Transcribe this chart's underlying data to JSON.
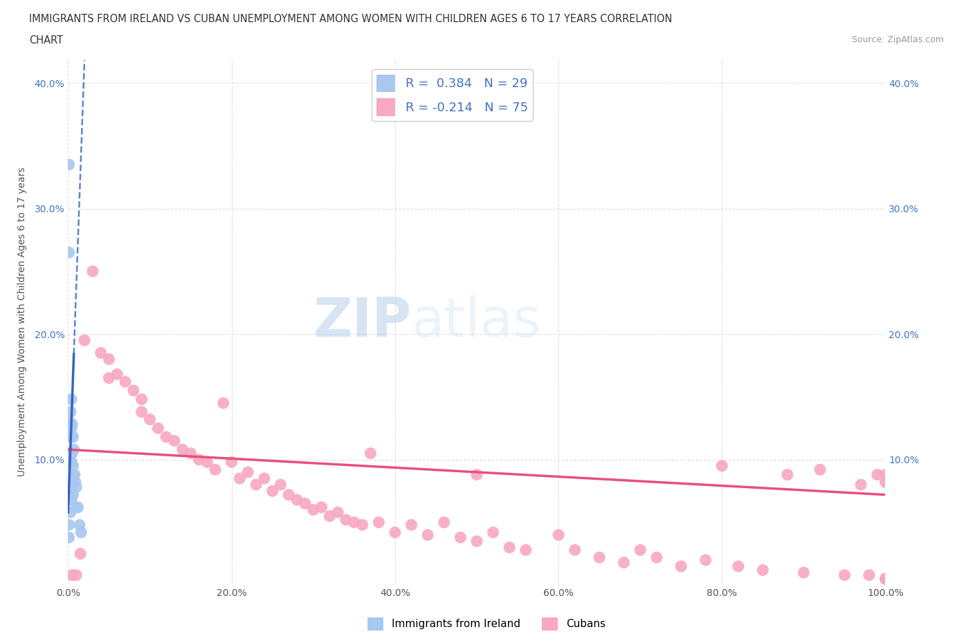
{
  "title_line1": "IMMIGRANTS FROM IRELAND VS CUBAN UNEMPLOYMENT AMONG WOMEN WITH CHILDREN AGES 6 TO 17 YEARS CORRELATION",
  "title_line2": "CHART",
  "source": "Source: ZipAtlas.com",
  "ylabel": "Unemployment Among Women with Children Ages 6 to 17 years",
  "xlim": [
    0,
    1.0
  ],
  "ylim": [
    0,
    0.42
  ],
  "xticks": [
    0.0,
    0.2,
    0.4,
    0.6,
    0.8,
    1.0
  ],
  "xtick_labels": [
    "0.0%",
    "20.0%",
    "40.0%",
    "60.0%",
    "80.0%",
    "100.0%"
  ],
  "yticks": [
    0.0,
    0.1,
    0.2,
    0.3,
    0.4
  ],
  "ytick_labels": [
    "",
    "10.0%",
    "20.0%",
    "30.0%",
    "40.0%"
  ],
  "ireland_color": "#a8c8f0",
  "cuban_color": "#f8a8c0",
  "ireland_line_color": "#3565c0",
  "cuban_line_color": "#e8507a",
  "R_ireland": 0.384,
  "N_ireland": 29,
  "R_cuban": -0.214,
  "N_cuban": 75,
  "legend_label_ireland": "Immigrants from Ireland",
  "legend_label_cuban": "Cubans",
  "background_color": "#ffffff",
  "grid_color": "#e0e0e0",
  "ireland_scatter_x": [
    0.001,
    0.001,
    0.001,
    0.001,
    0.002,
    0.002,
    0.003,
    0.003,
    0.003,
    0.003,
    0.004,
    0.004,
    0.004,
    0.004,
    0.005,
    0.005,
    0.005,
    0.006,
    0.006,
    0.006,
    0.007,
    0.007,
    0.008,
    0.009,
    0.01,
    0.01,
    0.012,
    0.014,
    0.016
  ],
  "ireland_scatter_y": [
    0.335,
    0.265,
    0.048,
    0.038,
    0.13,
    0.072,
    0.138,
    0.118,
    0.098,
    0.058,
    0.148,
    0.125,
    0.098,
    0.068,
    0.128,
    0.105,
    0.082,
    0.118,
    0.095,
    0.072,
    0.108,
    0.088,
    0.088,
    0.082,
    0.078,
    0.062,
    0.062,
    0.048,
    0.042
  ],
  "cuban_scatter_x": [
    0.005,
    0.01,
    0.015,
    0.02,
    0.03,
    0.04,
    0.05,
    0.05,
    0.06,
    0.07,
    0.08,
    0.09,
    0.09,
    0.1,
    0.11,
    0.12,
    0.13,
    0.14,
    0.15,
    0.16,
    0.17,
    0.18,
    0.19,
    0.2,
    0.21,
    0.22,
    0.23,
    0.24,
    0.25,
    0.26,
    0.27,
    0.28,
    0.29,
    0.3,
    0.31,
    0.32,
    0.33,
    0.34,
    0.35,
    0.36,
    0.37,
    0.38,
    0.4,
    0.42,
    0.44,
    0.46,
    0.48,
    0.5,
    0.5,
    0.52,
    0.54,
    0.56,
    0.6,
    0.62,
    0.65,
    0.68,
    0.7,
    0.72,
    0.75,
    0.78,
    0.8,
    0.82,
    0.85,
    0.88,
    0.9,
    0.92,
    0.95,
    0.97,
    0.98,
    0.99,
    1.0,
    1.0,
    1.0,
    1.0,
    1.0
  ],
  "cuban_scatter_y": [
    0.008,
    0.008,
    0.025,
    0.195,
    0.25,
    0.185,
    0.18,
    0.165,
    0.168,
    0.162,
    0.155,
    0.148,
    0.138,
    0.132,
    0.125,
    0.118,
    0.115,
    0.108,
    0.105,
    0.1,
    0.098,
    0.092,
    0.145,
    0.098,
    0.085,
    0.09,
    0.08,
    0.085,
    0.075,
    0.08,
    0.072,
    0.068,
    0.065,
    0.06,
    0.062,
    0.055,
    0.058,
    0.052,
    0.05,
    0.048,
    0.105,
    0.05,
    0.042,
    0.048,
    0.04,
    0.05,
    0.038,
    0.035,
    0.088,
    0.042,
    0.03,
    0.028,
    0.04,
    0.028,
    0.022,
    0.018,
    0.028,
    0.022,
    0.015,
    0.02,
    0.095,
    0.015,
    0.012,
    0.088,
    0.01,
    0.092,
    0.008,
    0.08,
    0.008,
    0.088,
    0.005,
    0.082,
    0.005,
    0.088,
    0.005
  ],
  "ireland_trend_x": [
    0.0,
    0.014
  ],
  "ireland_trend_y_intercept": 0.058,
  "ireland_trend_slope": 18.0,
  "cuban_trend_x": [
    0.0,
    1.0
  ],
  "cuban_trend_y_start": 0.108,
  "cuban_trend_y_end": 0.072
}
